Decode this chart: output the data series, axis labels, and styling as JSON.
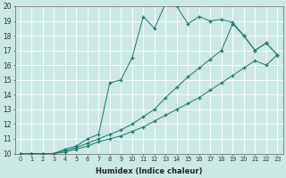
{
  "xlabel": "Humidex (Indice chaleur)",
  "bg_color": "#cce8e4",
  "line_color": "#1a7a6e",
  "grid_color": "#ffffff",
  "xlim": [
    -0.5,
    23.5
  ],
  "ylim": [
    10,
    20
  ],
  "xticks": [
    0,
    1,
    2,
    3,
    4,
    5,
    6,
    7,
    8,
    9,
    10,
    11,
    12,
    13,
    14,
    15,
    16,
    17,
    18,
    19,
    20,
    21,
    22,
    23
  ],
  "yticks": [
    10,
    11,
    12,
    13,
    14,
    15,
    16,
    17,
    18,
    19,
    20
  ],
  "series": [
    {
      "x": [
        0,
        1,
        2,
        3,
        4,
        5,
        6,
        7,
        8,
        9,
        10,
        11,
        12,
        13,
        14,
        15,
        16,
        17,
        18,
        19,
        20,
        21,
        22,
        23
      ],
      "y": [
        10,
        10,
        10,
        10,
        10.3,
        10.5,
        11.0,
        11.3,
        14.8,
        15.0,
        16.5,
        19.3,
        18.5,
        20.2,
        20.0,
        18.8,
        19.3,
        19.0,
        19.1,
        18.9,
        18.0,
        17.0,
        17.5,
        16.7
      ]
    },
    {
      "x": [
        0,
        1,
        2,
        3,
        4,
        5,
        6,
        7,
        8,
        9,
        10,
        11,
        12,
        13,
        14,
        15,
        16,
        17,
        18,
        19,
        20,
        21,
        22,
        23
      ],
      "y": [
        10,
        10,
        10,
        10,
        10.2,
        10.4,
        10.7,
        11.0,
        11.3,
        11.6,
        12.0,
        12.5,
        13.0,
        13.8,
        14.5,
        15.2,
        15.8,
        16.4,
        17.0,
        18.8,
        18.0,
        17.0,
        17.5,
        16.7
      ]
    },
    {
      "x": [
        0,
        1,
        2,
        3,
        4,
        5,
        6,
        7,
        8,
        9,
        10,
        11,
        12,
        13,
        14,
        15,
        16,
        17,
        18,
        19,
        20,
        21,
        22,
        23
      ],
      "y": [
        10,
        10,
        10,
        10,
        10.1,
        10.3,
        10.5,
        10.8,
        11.0,
        11.2,
        11.5,
        11.8,
        12.2,
        12.6,
        13.0,
        13.4,
        13.8,
        14.3,
        14.8,
        15.3,
        15.8,
        16.3,
        16.0,
        16.7
      ]
    }
  ]
}
